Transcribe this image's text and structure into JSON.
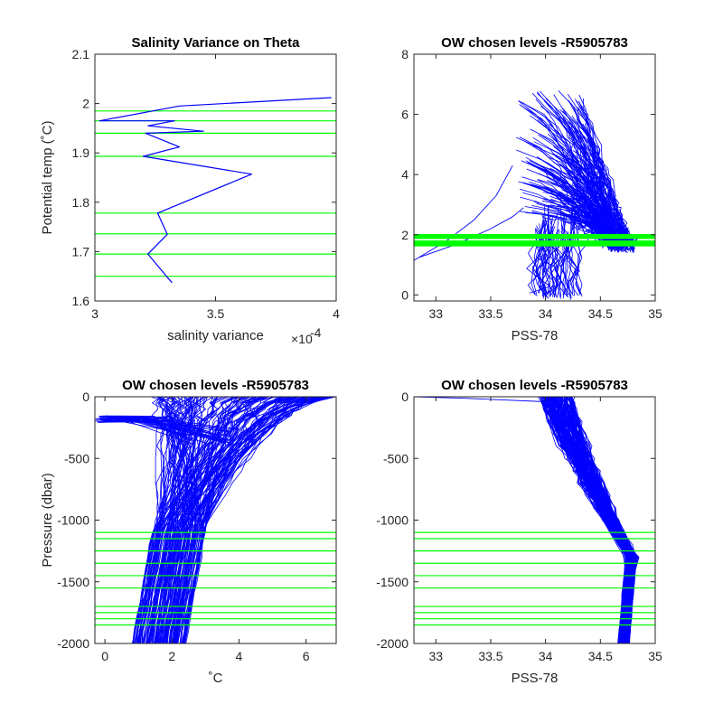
{
  "colors": {
    "profile": "#0000ff",
    "level": "#00ff00",
    "axis": "#262626"
  },
  "chart_data": [
    {
      "type": "line",
      "title": "Salinity Variance on Theta",
      "xlabel": "salinity variance",
      "x_exponent": "×10",
      "x_exponent_power": "-4",
      "ylabel": "Potential temp (˚C)",
      "xlim": [
        3.0,
        4.0
      ],
      "ylim": [
        1.6,
        2.1
      ],
      "xticks": [
        3.0,
        3.5,
        4.0
      ],
      "xtick_labels": [
        "3",
        "3.5",
        "4"
      ],
      "yticks": [
        1.6,
        1.7,
        1.8,
        1.9,
        2.0,
        2.1
      ],
      "ytick_labels": [
        "1.6",
        "1.7",
        "1.8",
        "1.9",
        "2",
        "2.1"
      ],
      "series": [
        {
          "x": [
            3.32,
            3.3,
            3.22,
            3.3,
            3.26,
            3.65,
            3.2,
            3.35,
            3.21,
            3.45,
            3.22,
            3.33,
            3.02,
            3.35,
            3.98
          ],
          "y": [
            1.637,
            1.648,
            1.695,
            1.735,
            1.778,
            1.857,
            1.893,
            1.912,
            1.94,
            1.944,
            1.955,
            1.965,
            1.965,
            1.995,
            2.012
          ]
        }
      ],
      "hlines": [
        1.65,
        1.695,
        1.736,
        1.778,
        1.893,
        1.94,
        1.965,
        1.985
      ]
    },
    {
      "type": "scatter",
      "title": "OW chosen levels -R5905783",
      "xlabel": "PSS-78",
      "ylabel": "",
      "xlim": [
        32.8,
        35.0
      ],
      "ylim": [
        -0.2,
        8.0
      ],
      "xticks": [
        33.0,
        33.5,
        34.0,
        34.5,
        35.0
      ],
      "xtick_labels": [
        "33",
        "33.5",
        "34",
        "34.5",
        "35"
      ],
      "yticks": [
        0,
        2,
        4,
        6,
        8
      ],
      "ytick_labels": [
        "0",
        "2",
        "4",
        "6",
        "8"
      ],
      "hlines": [
        1.65,
        1.695,
        1.736,
        1.778,
        1.893,
        1.94,
        1.965,
        1.985
      ]
    },
    {
      "type": "line",
      "title": "OW chosen levels -R5905783",
      "xlabel": "˚C",
      "ylabel": "Pressure (dbar)",
      "xlim": [
        -0.3,
        6.9
      ],
      "ylim": [
        -2000,
        0
      ],
      "xticks": [
        0,
        2,
        4,
        6
      ],
      "xtick_labels": [
        "0",
        "2",
        "4",
        "6"
      ],
      "yticks": [
        -2000,
        -1500,
        -1000,
        -500,
        0
      ],
      "ytick_labels": [
        "-2000",
        "-1500",
        "-1000",
        "-500",
        "0"
      ],
      "hlines": [
        -1100,
        -1150,
        -1250,
        -1350,
        -1450,
        -1550,
        -1700,
        -1750,
        -1800,
        -1850
      ]
    },
    {
      "type": "line",
      "title": "OW chosen levels -R5905783",
      "xlabel": "PSS-78",
      "ylabel": "",
      "xlim": [
        32.8,
        35.0
      ],
      "ylim": [
        -2000,
        0
      ],
      "xticks": [
        33.0,
        33.5,
        34.0,
        34.5,
        35.0
      ],
      "xtick_labels": [
        "33",
        "33.5",
        "34",
        "34.5",
        "35"
      ],
      "yticks": [
        -2000,
        -1500,
        -1000,
        -500,
        0
      ],
      "ytick_labels": [
        "-2000",
        "-1500",
        "-1000",
        "-500",
        "0"
      ],
      "hlines": [
        -1100,
        -1150,
        -1250,
        -1350,
        -1450,
        -1550,
        -1700,
        -1750,
        -1800,
        -1850
      ]
    }
  ]
}
